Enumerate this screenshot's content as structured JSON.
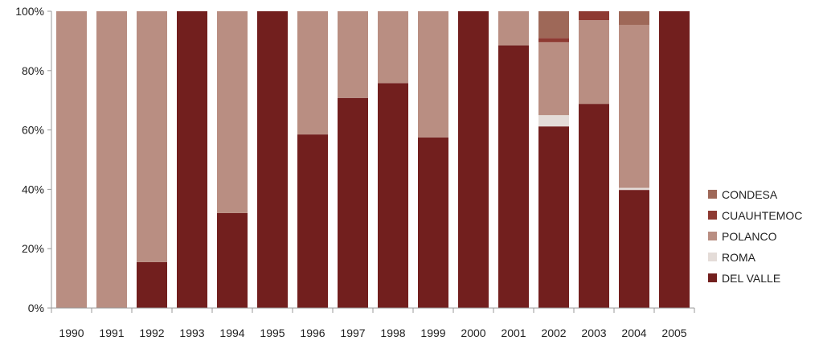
{
  "chart_data": {
    "type": "bar",
    "stacked": true,
    "normalized": true,
    "categories": [
      "1990",
      "1991",
      "1992",
      "1993",
      "1994",
      "1995",
      "1996",
      "1997",
      "1998",
      "1999",
      "2000",
      "2001",
      "2002",
      "2003",
      "2004",
      "2005"
    ],
    "series": [
      {
        "name": "DEL VALLE",
        "color": "#721f1e",
        "values": [
          0,
          0,
          15.5,
          100,
          32,
          100,
          58.5,
          70.8,
          75.8,
          57.5,
          100,
          88.5,
          61.2,
          68.8,
          39.8,
          100
        ]
      },
      {
        "name": "ROMA",
        "color": "#e4dcd8",
        "values": [
          0,
          0,
          0,
          0,
          0,
          0,
          0,
          0,
          0,
          0,
          0,
          0,
          3.8,
          0,
          0.7,
          0
        ]
      },
      {
        "name": "POLANCO",
        "color": "#b98e82",
        "values": [
          100,
          100,
          84.5,
          0,
          68,
          0,
          41.5,
          29.2,
          24.2,
          42.5,
          0,
          11.5,
          24.6,
          28.2,
          54.9,
          0
        ]
      },
      {
        "name": "CUAUHTEMOC",
        "color": "#8e3a32",
        "values": [
          0,
          0,
          0,
          0,
          0,
          0,
          0,
          0,
          0,
          0,
          0,
          0,
          1.4,
          3.0,
          0,
          0
        ]
      },
      {
        "name": "CONDESA",
        "color": "#9e6858",
        "values": [
          0,
          0,
          0,
          0,
          0,
          0,
          0,
          0,
          0,
          0,
          0,
          0,
          9.0,
          0,
          4.6,
          0
        ]
      }
    ],
    "y_ticks": [
      "0%",
      "20%",
      "40%",
      "60%",
      "80%",
      "100%"
    ],
    "y_tick_values": [
      0,
      20,
      40,
      60,
      80,
      100
    ],
    "ylim": [
      0,
      100
    ],
    "legend_order": [
      "CONDESA",
      "CUAUHTEMOC",
      "POLANCO",
      "ROMA",
      "DEL VALLE"
    ],
    "legend_position": "right",
    "grid": false
  }
}
